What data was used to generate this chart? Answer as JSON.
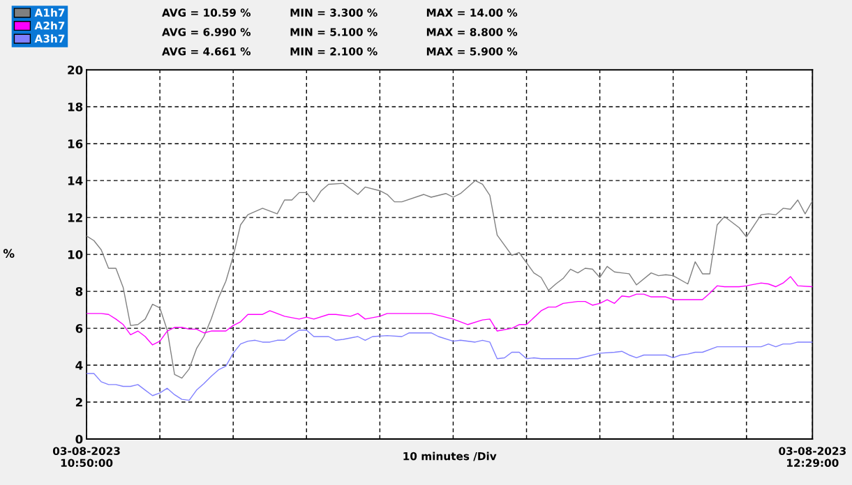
{
  "chart_data": {
    "type": "line",
    "ylabel": "%",
    "xlabel": "10 minutes /Div",
    "xlim": [
      "2023-08-03T10:50",
      "2023-08-03T12:29"
    ],
    "xticks": [
      {
        "value": "2023-08-03T10:50",
        "label": "03-08-2023\n10:50:00"
      },
      {
        "value": "2023-08-03T11:00",
        "label": null
      },
      {
        "value": "2023-08-03T11:10",
        "label": null
      },
      {
        "value": "2023-08-03T11:20",
        "label": null
      },
      {
        "value": "2023-08-03T11:30",
        "label": null
      },
      {
        "value": "2023-08-03T11:40",
        "label": null
      },
      {
        "value": "2023-08-03T11:50",
        "label": null
      },
      {
        "value": "2023-08-03T12:00",
        "label": null
      },
      {
        "value": "2023-08-03T12:10",
        "label": null
      },
      {
        "value": "2023-08-03T12:20",
        "label": null
      },
      {
        "value": "2023-08-03T12:29",
        "label": "03-08-2023\n12:29:00"
      }
    ],
    "ylim": [
      0,
      20
    ],
    "yticks": [
      0,
      2,
      4,
      6,
      8,
      10,
      12,
      14,
      16,
      18,
      20
    ],
    "grid": true,
    "legend": "top left",
    "line_style": "solid",
    "marker": "none",
    "annotations": [
      "AVG = 10.59 %",
      "MIN = 3.300 %",
      "MAX = 14.00 %",
      "AVG = 6.990 %",
      "MIN = 5.100 %",
      "MAX = 8.800 %",
      "AVG = 4.661 %",
      "MIN = 2.100 %",
      "MAX = 5.900 %"
    ],
    "series": [
      {
        "name": "A1h7",
        "color": "#808080",
        "x": [
          "2023-08-03T10:50",
          "2023-08-03T10:51",
          "2023-08-03T10:52",
          "2023-08-03T10:53",
          "2023-08-03T10:54",
          "2023-08-03T10:55",
          "2023-08-03T10:56",
          "2023-08-03T10:57",
          "2023-08-03T10:58",
          "2023-08-03T10:59",
          "2023-08-03T11:00",
          "2023-08-03T11:01",
          "2023-08-03T11:02",
          "2023-08-03T11:03",
          "2023-08-03T11:04",
          "2023-08-03T11:05",
          "2023-08-03T11:06",
          "2023-08-03T11:07",
          "2023-08-03T11:08",
          "2023-08-03T11:09",
          "2023-08-03T11:10",
          "2023-08-03T11:11",
          "2023-08-03T11:12",
          "2023-08-03T11:14",
          "2023-08-03T11:16",
          "2023-08-03T11:17",
          "2023-08-03T11:18",
          "2023-08-03T11:19",
          "2023-08-03T11:20",
          "2023-08-03T11:21",
          "2023-08-03T11:22",
          "2023-08-03T11:23",
          "2023-08-03T11:25",
          "2023-08-03T11:27",
          "2023-08-03T11:28",
          "2023-08-03T11:30",
          "2023-08-03T11:31",
          "2023-08-03T11:32",
          "2023-08-03T11:33",
          "2023-08-03T11:36",
          "2023-08-03T11:37",
          "2023-08-03T11:39",
          "2023-08-03T11:40",
          "2023-08-03T11:41",
          "2023-08-03T11:43",
          "2023-08-03T11:44",
          "2023-08-03T11:45",
          "2023-08-03T11:46",
          "2023-08-03T11:47",
          "2023-08-03T11:48",
          "2023-08-03T11:49",
          "2023-08-03T11:51",
          "2023-08-03T11:52",
          "2023-08-03T11:53",
          "2023-08-03T11:54",
          "2023-08-03T11:55",
          "2023-08-03T11:56",
          "2023-08-03T11:57",
          "2023-08-03T11:58",
          "2023-08-03T11:59",
          "2023-08-03T12:00",
          "2023-08-03T12:01",
          "2023-08-03T12:02",
          "2023-08-03T12:03",
          "2023-08-03T12:04",
          "2023-08-03T12:05",
          "2023-08-03T12:07",
          "2023-08-03T12:08",
          "2023-08-03T12:09",
          "2023-08-03T12:10",
          "2023-08-03T12:12",
          "2023-08-03T12:13",
          "2023-08-03T12:14",
          "2023-08-03T12:15",
          "2023-08-03T12:16",
          "2023-08-03T12:17",
          "2023-08-03T12:19",
          "2023-08-03T12:20",
          "2023-08-03T12:22",
          "2023-08-03T12:23",
          "2023-08-03T12:24",
          "2023-08-03T12:25",
          "2023-08-03T12:26",
          "2023-08-03T12:27",
          "2023-08-03T12:28",
          "2023-08-03T12:29"
        ],
        "values": [
          11.0,
          10.75,
          10.25,
          9.25,
          9.25,
          8.2,
          6.15,
          6.2,
          6.5,
          7.3,
          7.1,
          5.9,
          3.5,
          3.3,
          3.8,
          4.9,
          5.55,
          6.5,
          7.65,
          8.55,
          9.9,
          11.6,
          12.15,
          12.5,
          12.2,
          12.95,
          12.95,
          13.35,
          13.35,
          12.85,
          13.45,
          13.8,
          13.85,
          13.25,
          13.65,
          13.45,
          13.25,
          12.85,
          12.85,
          13.25,
          13.1,
          13.3,
          13.1,
          13.3,
          14.0,
          13.8,
          13.2,
          11.05,
          10.5,
          9.95,
          10.1,
          9.0,
          8.75,
          8.05,
          8.4,
          8.7,
          9.2,
          9.0,
          9.25,
          9.2,
          8.75,
          9.35,
          9.05,
          9.0,
          8.95,
          8.35,
          9.0,
          8.85,
          8.9,
          8.85,
          8.4,
          9.6,
          8.95,
          8.95,
          11.6,
          12.05,
          11.45,
          10.95,
          12.15,
          12.2,
          12.15,
          12.5,
          12.45,
          12.95,
          12.2,
          12.9
        ]
      },
      {
        "name": "A2h7",
        "color": "#ff00ff",
        "x": [
          "2023-08-03T10:50",
          "2023-08-03T10:52",
          "2023-08-03T10:53",
          "2023-08-03T10:54",
          "2023-08-03T10:55",
          "2023-08-03T10:56",
          "2023-08-03T10:57",
          "2023-08-03T10:58",
          "2023-08-03T10:59",
          "2023-08-03T11:00",
          "2023-08-03T11:01",
          "2023-08-03T11:02",
          "2023-08-03T11:03",
          "2023-08-03T11:04",
          "2023-08-03T11:05",
          "2023-08-03T11:06",
          "2023-08-03T11:07",
          "2023-08-03T11:09",
          "2023-08-03T11:10",
          "2023-08-03T11:11",
          "2023-08-03T11:12",
          "2023-08-03T11:14",
          "2023-08-03T11:15",
          "2023-08-03T11:17",
          "2023-08-03T11:19",
          "2023-08-03T11:20",
          "2023-08-03T11:21",
          "2023-08-03T11:23",
          "2023-08-03T11:24",
          "2023-08-03T11:26",
          "2023-08-03T11:27",
          "2023-08-03T11:28",
          "2023-08-03T11:30",
          "2023-08-03T11:31",
          "2023-08-03T11:37",
          "2023-08-03T11:40",
          "2023-08-03T11:42",
          "2023-08-03T11:44",
          "2023-08-03T11:45",
          "2023-08-03T11:46",
          "2023-08-03T11:48",
          "2023-08-03T11:49",
          "2023-08-03T11:50",
          "2023-08-03T11:52",
          "2023-08-03T11:53",
          "2023-08-03T11:54",
          "2023-08-03T11:55",
          "2023-08-03T11:57",
          "2023-08-03T11:58",
          "2023-08-03T11:59",
          "2023-08-03T12:00",
          "2023-08-03T12:01",
          "2023-08-03T12:02",
          "2023-08-03T12:03",
          "2023-08-03T12:04",
          "2023-08-03T12:05",
          "2023-08-03T12:06",
          "2023-08-03T12:07",
          "2023-08-03T12:09",
          "2023-08-03T12:10",
          "2023-08-03T12:14",
          "2023-08-03T12:15",
          "2023-08-03T12:16",
          "2023-08-03T12:17",
          "2023-08-03T12:19",
          "2023-08-03T12:20",
          "2023-08-03T12:22",
          "2023-08-03T12:23",
          "2023-08-03T12:24",
          "2023-08-03T12:25",
          "2023-08-03T12:26",
          "2023-08-03T12:27",
          "2023-08-03T12:29"
        ],
        "values": [
          6.8,
          6.8,
          6.75,
          6.5,
          6.2,
          5.65,
          5.85,
          5.55,
          5.1,
          5.3,
          5.85,
          6.05,
          6.05,
          5.95,
          5.95,
          5.75,
          5.85,
          5.85,
          6.15,
          6.35,
          6.75,
          6.75,
          6.95,
          6.65,
          6.5,
          6.6,
          6.5,
          6.75,
          6.75,
          6.65,
          6.8,
          6.5,
          6.65,
          6.8,
          6.8,
          6.5,
          6.2,
          6.45,
          6.5,
          5.85,
          6.0,
          6.2,
          6.2,
          6.95,
          7.15,
          7.15,
          7.35,
          7.45,
          7.45,
          7.25,
          7.35,
          7.55,
          7.35,
          7.75,
          7.7,
          7.85,
          7.85,
          7.7,
          7.7,
          7.55,
          7.55,
          7.9,
          8.3,
          8.25,
          8.25,
          8.3,
          8.45,
          8.4,
          8.25,
          8.45,
          8.8,
          8.3,
          8.25
        ]
      },
      {
        "name": "A3h7",
        "color": "#8080ff",
        "x": [
          "2023-08-03T10:50",
          "2023-08-03T10:51",
          "2023-08-03T10:52",
          "2023-08-03T10:53",
          "2023-08-03T10:54",
          "2023-08-03T10:55",
          "2023-08-03T10:56",
          "2023-08-03T10:57",
          "2023-08-03T10:58",
          "2023-08-03T10:59",
          "2023-08-03T11:00",
          "2023-08-03T11:01",
          "2023-08-03T11:02",
          "2023-08-03T11:03",
          "2023-08-03T11:04",
          "2023-08-03T11:05",
          "2023-08-03T11:06",
          "2023-08-03T11:07",
          "2023-08-03T11:08",
          "2023-08-03T11:09",
          "2023-08-03T11:10",
          "2023-08-03T11:11",
          "2023-08-03T11:12",
          "2023-08-03T11:13",
          "2023-08-03T11:14",
          "2023-08-03T11:15",
          "2023-08-03T11:16",
          "2023-08-03T11:17",
          "2023-08-03T11:18",
          "2023-08-03T11:19",
          "2023-08-03T11:20",
          "2023-08-03T11:21",
          "2023-08-03T11:23",
          "2023-08-03T11:24",
          "2023-08-03T11:25",
          "2023-08-03T11:27",
          "2023-08-03T11:28",
          "2023-08-03T11:29",
          "2023-08-03T11:31",
          "2023-08-03T11:33",
          "2023-08-03T11:34",
          "2023-08-03T11:37",
          "2023-08-03T11:38",
          "2023-08-03T11:40",
          "2023-08-03T11:41",
          "2023-08-03T11:43",
          "2023-08-03T11:44",
          "2023-08-03T11:45",
          "2023-08-03T11:46",
          "2023-08-03T11:47",
          "2023-08-03T11:48",
          "2023-08-03T11:49",
          "2023-08-03T11:50",
          "2023-08-03T11:51",
          "2023-08-03T11:52",
          "2023-08-03T11:57",
          "2023-08-03T12:00",
          "2023-08-03T12:02",
          "2023-08-03T12:03",
          "2023-08-03T12:04",
          "2023-08-03T12:05",
          "2023-08-03T12:06",
          "2023-08-03T12:09",
          "2023-08-03T12:10",
          "2023-08-03T12:11",
          "2023-08-03T12:12",
          "2023-08-03T12:13",
          "2023-08-03T12:14",
          "2023-08-03T12:16",
          "2023-08-03T12:19",
          "2023-08-03T12:21",
          "2023-08-03T12:22",
          "2023-08-03T12:23",
          "2023-08-03T12:24",
          "2023-08-03T12:25",
          "2023-08-03T12:26",
          "2023-08-03T12:27",
          "2023-08-03T12:29"
        ],
        "values": [
          3.55,
          3.55,
          3.1,
          2.95,
          2.95,
          2.85,
          2.85,
          2.95,
          2.65,
          2.35,
          2.5,
          2.75,
          2.4,
          2.15,
          2.1,
          2.65,
          3.0,
          3.4,
          3.75,
          3.95,
          4.65,
          5.15,
          5.3,
          5.35,
          5.25,
          5.25,
          5.35,
          5.35,
          5.65,
          5.9,
          5.9,
          5.55,
          5.55,
          5.35,
          5.4,
          5.55,
          5.35,
          5.55,
          5.6,
          5.55,
          5.75,
          5.75,
          5.55,
          5.3,
          5.35,
          5.25,
          5.35,
          5.25,
          4.35,
          4.4,
          4.7,
          4.7,
          4.35,
          4.4,
          4.35,
          4.35,
          4.65,
          4.7,
          4.75,
          4.55,
          4.4,
          4.55,
          4.55,
          4.4,
          4.55,
          4.6,
          4.7,
          4.7,
          5.0,
          5.0,
          5.0,
          5.0,
          5.15,
          5.0,
          5.15,
          5.15,
          5.25,
          5.25
        ]
      }
    ]
  }
}
